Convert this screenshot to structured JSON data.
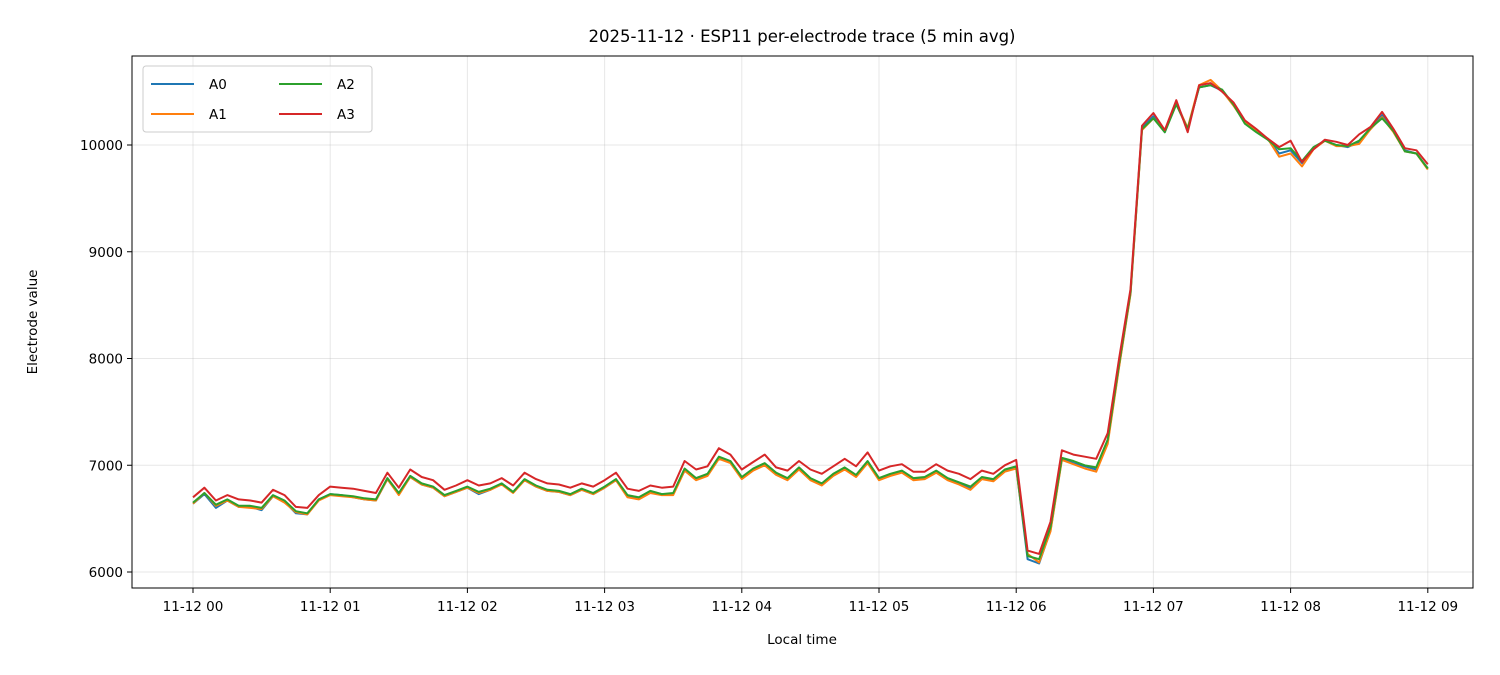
{
  "chart_data": {
    "type": "line",
    "title": "2025-11-12 · ESP11 per-electrode trace (5 min avg)",
    "xlabel": "Local time",
    "ylabel": "Electrode value",
    "x_tick_labels": [
      "11-12 00",
      "11-12 01",
      "11-12 02",
      "11-12 03",
      "11-12 04",
      "11-12 05",
      "11-12 06",
      "11-12 07",
      "11-12 08",
      "11-12 09"
    ],
    "y_ticks": [
      6000,
      7000,
      8000,
      9000,
      10000
    ],
    "ylim": [
      5870,
      10830
    ],
    "xlim_hours": [
      -0.45,
      9.37
    ],
    "x_step_minutes": 5,
    "x_start": "11-12 00:00",
    "grid": true,
    "legend": {
      "position": "upper left",
      "columns": 2,
      "entries": [
        "A0",
        "A1",
        "A2",
        "A3"
      ]
    },
    "colors": {
      "A0": "#1f77b4",
      "A1": "#ff7f0e",
      "A2": "#2ca02c",
      "A3": "#d62728"
    },
    "series": [
      {
        "name": "A3",
        "values": [
          6700,
          6790,
          6670,
          6720,
          6680,
          6670,
          6650,
          6770,
          6720,
          6610,
          6600,
          6720,
          6800,
          6790,
          6780,
          6760,
          6740,
          6930,
          6790,
          6960,
          6890,
          6860,
          6770,
          6810,
          6860,
          6810,
          6830,
          6880,
          6810,
          6930,
          6870,
          6830,
          6820,
          6790,
          6830,
          6800,
          6860,
          6930,
          6780,
          6760,
          6810,
          6790,
          6800,
          7040,
          6960,
          6990,
          7160,
          7100,
          6960,
          7030,
          7100,
          6980,
          6950,
          7040,
          6960,
          6920,
          6990,
          7060,
          6990,
          7120,
          6950,
          6990,
          7010,
          6940,
          6940,
          7010,
          6950,
          6920,
          6870,
          6950,
          6920,
          7000,
          7050,
          6200,
          6170,
          6470,
          7140,
          7100,
          7080,
          7060,
          7300,
          8000,
          8650,
          10180,
          10300,
          10140,
          10420,
          10120,
          10560,
          10580,
          10500,
          10400,
          10230,
          10150,
          10060,
          9980,
          10040,
          9840,
          9960,
          10050,
          10030,
          10000,
          10100,
          10170,
          10310,
          10150,
          9970,
          9950,
          9820
        ]
      },
      {
        "name": "A2",
        "values": [
          6650,
          6740,
          6630,
          6680,
          6620,
          6620,
          6600,
          6720,
          6670,
          6570,
          6550,
          6680,
          6730,
          6720,
          6710,
          6690,
          6680,
          6880,
          6740,
          6900,
          6830,
          6800,
          6720,
          6760,
          6800,
          6750,
          6780,
          6830,
          6750,
          6870,
          6810,
          6770,
          6760,
          6730,
          6780,
          6740,
          6800,
          6870,
          6720,
          6700,
          6760,
          6730,
          6740,
          6970,
          6880,
          6920,
          7080,
          7040,
          6890,
          6970,
          7020,
          6930,
          6880,
          6980,
          6880,
          6830,
          6920,
          6980,
          6910,
          7040,
          6880,
          6920,
          6950,
          6880,
          6890,
          6950,
          6880,
          6840,
          6800,
          6890,
          6870,
          6960,
          6990,
          6150,
          6120,
          6420,
          7070,
          7040,
          7000,
          6980,
          7240,
          7950,
          8620,
          10150,
          10250,
          10120,
          10380,
          10150,
          10540,
          10560,
          10520,
          10380,
          10200,
          10120,
          10050,
          9960,
          9970,
          9850,
          9980,
          10040,
          10000,
          9990,
          10040,
          10160,
          10250,
          10130,
          9940,
          9920,
          9780
        ]
      },
      {
        "name": "A1",
        "values": [
          6640,
          6740,
          6620,
          6670,
          6610,
          6600,
          6590,
          6710,
          6650,
          6560,
          6540,
          6670,
          6720,
          6710,
          6700,
          6680,
          6670,
          6870,
          6720,
          6890,
          6820,
          6790,
          6710,
          6750,
          6790,
          6740,
          6770,
          6820,
          6740,
          6860,
          6800,
          6760,
          6750,
          6720,
          6770,
          6730,
          6790,
          6860,
          6700,
          6680,
          6740,
          6720,
          6720,
          6950,
          6860,
          6900,
          7060,
          7020,
          6870,
          6950,
          7000,
          6910,
          6860,
          6960,
          6860,
          6810,
          6900,
          6960,
          6890,
          7020,
          6860,
          6900,
          6930,
          6860,
          6870,
          6930,
          6860,
          6820,
          6770,
          6870,
          6850,
          6940,
          6970,
          6170,
          6090,
          6380,
          7050,
          7010,
          6970,
          6940,
          7200,
          7920,
          8600,
          10140,
          10250,
          10130,
          10390,
          10160,
          10560,
          10610,
          10510,
          10370,
          10210,
          10130,
          10060,
          9890,
          9920,
          9800,
          9960,
          10040,
          9990,
          9990,
          10010,
          10150,
          10260,
          10120,
          9940,
          9920,
          9770
        ]
      },
      {
        "name": "A0",
        "values": [
          6640,
          6730,
          6600,
          6670,
          6610,
          6610,
          6580,
          6710,
          6660,
          6550,
          6540,
          6680,
          6730,
          6720,
          6700,
          6680,
          6670,
          6870,
          6730,
          6890,
          6820,
          6790,
          6710,
          6750,
          6790,
          6730,
          6770,
          6830,
          6750,
          6860,
          6800,
          6760,
          6750,
          6720,
          6770,
          6730,
          6790,
          6860,
          6710,
          6690,
          6750,
          6730,
          6730,
          6950,
          6870,
          6910,
          7070,
          7030,
          6880,
          6960,
          7010,
          6920,
          6870,
          6970,
          6870,
          6820,
          6910,
          6970,
          6900,
          7030,
          6870,
          6910,
          6940,
          6870,
          6880,
          6940,
          6870,
          6830,
          6780,
          6880,
          6860,
          6950,
          6980,
          6120,
          6080,
          6390,
          7060,
          7020,
          6990,
          6960,
          7220,
          7930,
          8610,
          10160,
          10270,
          10120,
          10400,
          10150,
          10540,
          10560,
          10510,
          10380,
          10210,
          10130,
          10060,
          9920,
          9950,
          9830,
          9970,
          10040,
          10000,
          9980,
          10030,
          10150,
          10280,
          10130,
          9950,
          9920,
          9780
        ]
      }
    ]
  }
}
